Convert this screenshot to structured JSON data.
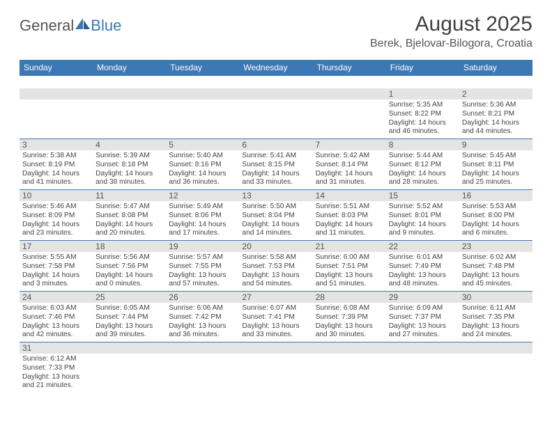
{
  "brand": {
    "word1": "General",
    "word2": "Blue"
  },
  "title": "August 2025",
  "location": "Berek, Bjelovar-Bilogora, Croatia",
  "day_headers": [
    "Sunday",
    "Monday",
    "Tuesday",
    "Wednesday",
    "Thursday",
    "Friday",
    "Saturday"
  ],
  "colors": {
    "header_bg": "#3c78b4",
    "header_text": "#ffffff",
    "daynum_bg": "#e4e4e4",
    "row_border": "#3c78b4",
    "text": "#444444",
    "title_text": "#404040"
  },
  "weeks": [
    {
      "daynums": [
        "",
        "",
        "",
        "",
        "",
        "1",
        "2"
      ],
      "cells": [
        null,
        null,
        null,
        null,
        null,
        {
          "sunrise": "Sunrise: 5:35 AM",
          "sunset": "Sunset: 8:22 PM",
          "day1": "Daylight: 14 hours",
          "day2": "and 46 minutes."
        },
        {
          "sunrise": "Sunrise: 5:36 AM",
          "sunset": "Sunset: 8:21 PM",
          "day1": "Daylight: 14 hours",
          "day2": "and 44 minutes."
        }
      ]
    },
    {
      "daynums": [
        "3",
        "4",
        "5",
        "6",
        "7",
        "8",
        "9"
      ],
      "cells": [
        {
          "sunrise": "Sunrise: 5:38 AM",
          "sunset": "Sunset: 8:19 PM",
          "day1": "Daylight: 14 hours",
          "day2": "and 41 minutes."
        },
        {
          "sunrise": "Sunrise: 5:39 AM",
          "sunset": "Sunset: 8:18 PM",
          "day1": "Daylight: 14 hours",
          "day2": "and 38 minutes."
        },
        {
          "sunrise": "Sunrise: 5:40 AM",
          "sunset": "Sunset: 8:16 PM",
          "day1": "Daylight: 14 hours",
          "day2": "and 36 minutes."
        },
        {
          "sunrise": "Sunrise: 5:41 AM",
          "sunset": "Sunset: 8:15 PM",
          "day1": "Daylight: 14 hours",
          "day2": "and 33 minutes."
        },
        {
          "sunrise": "Sunrise: 5:42 AM",
          "sunset": "Sunset: 8:14 PM",
          "day1": "Daylight: 14 hours",
          "day2": "and 31 minutes."
        },
        {
          "sunrise": "Sunrise: 5:44 AM",
          "sunset": "Sunset: 8:12 PM",
          "day1": "Daylight: 14 hours",
          "day2": "and 28 minutes."
        },
        {
          "sunrise": "Sunrise: 5:45 AM",
          "sunset": "Sunset: 8:11 PM",
          "day1": "Daylight: 14 hours",
          "day2": "and 25 minutes."
        }
      ]
    },
    {
      "daynums": [
        "10",
        "11",
        "12",
        "13",
        "14",
        "15",
        "16"
      ],
      "cells": [
        {
          "sunrise": "Sunrise: 5:46 AM",
          "sunset": "Sunset: 8:09 PM",
          "day1": "Daylight: 14 hours",
          "day2": "and 23 minutes."
        },
        {
          "sunrise": "Sunrise: 5:47 AM",
          "sunset": "Sunset: 8:08 PM",
          "day1": "Daylight: 14 hours",
          "day2": "and 20 minutes."
        },
        {
          "sunrise": "Sunrise: 5:49 AM",
          "sunset": "Sunset: 8:06 PM",
          "day1": "Daylight: 14 hours",
          "day2": "and 17 minutes."
        },
        {
          "sunrise": "Sunrise: 5:50 AM",
          "sunset": "Sunset: 8:04 PM",
          "day1": "Daylight: 14 hours",
          "day2": "and 14 minutes."
        },
        {
          "sunrise": "Sunrise: 5:51 AM",
          "sunset": "Sunset: 8:03 PM",
          "day1": "Daylight: 14 hours",
          "day2": "and 11 minutes."
        },
        {
          "sunrise": "Sunrise: 5:52 AM",
          "sunset": "Sunset: 8:01 PM",
          "day1": "Daylight: 14 hours",
          "day2": "and 9 minutes."
        },
        {
          "sunrise": "Sunrise: 5:53 AM",
          "sunset": "Sunset: 8:00 PM",
          "day1": "Daylight: 14 hours",
          "day2": "and 6 minutes."
        }
      ]
    },
    {
      "daynums": [
        "17",
        "18",
        "19",
        "20",
        "21",
        "22",
        "23"
      ],
      "cells": [
        {
          "sunrise": "Sunrise: 5:55 AM",
          "sunset": "Sunset: 7:58 PM",
          "day1": "Daylight: 14 hours",
          "day2": "and 3 minutes."
        },
        {
          "sunrise": "Sunrise: 5:56 AM",
          "sunset": "Sunset: 7:56 PM",
          "day1": "Daylight: 14 hours",
          "day2": "and 0 minutes."
        },
        {
          "sunrise": "Sunrise: 5:57 AM",
          "sunset": "Sunset: 7:55 PM",
          "day1": "Daylight: 13 hours",
          "day2": "and 57 minutes."
        },
        {
          "sunrise": "Sunrise: 5:58 AM",
          "sunset": "Sunset: 7:53 PM",
          "day1": "Daylight: 13 hours",
          "day2": "and 54 minutes."
        },
        {
          "sunrise": "Sunrise: 6:00 AM",
          "sunset": "Sunset: 7:51 PM",
          "day1": "Daylight: 13 hours",
          "day2": "and 51 minutes."
        },
        {
          "sunrise": "Sunrise: 6:01 AM",
          "sunset": "Sunset: 7:49 PM",
          "day1": "Daylight: 13 hours",
          "day2": "and 48 minutes."
        },
        {
          "sunrise": "Sunrise: 6:02 AM",
          "sunset": "Sunset: 7:48 PM",
          "day1": "Daylight: 13 hours",
          "day2": "and 45 minutes."
        }
      ]
    },
    {
      "daynums": [
        "24",
        "25",
        "26",
        "27",
        "28",
        "29",
        "30"
      ],
      "cells": [
        {
          "sunrise": "Sunrise: 6:03 AM",
          "sunset": "Sunset: 7:46 PM",
          "day1": "Daylight: 13 hours",
          "day2": "and 42 minutes."
        },
        {
          "sunrise": "Sunrise: 6:05 AM",
          "sunset": "Sunset: 7:44 PM",
          "day1": "Daylight: 13 hours",
          "day2": "and 39 minutes."
        },
        {
          "sunrise": "Sunrise: 6:06 AM",
          "sunset": "Sunset: 7:42 PM",
          "day1": "Daylight: 13 hours",
          "day2": "and 36 minutes."
        },
        {
          "sunrise": "Sunrise: 6:07 AM",
          "sunset": "Sunset: 7:41 PM",
          "day1": "Daylight: 13 hours",
          "day2": "and 33 minutes."
        },
        {
          "sunrise": "Sunrise: 6:08 AM",
          "sunset": "Sunset: 7:39 PM",
          "day1": "Daylight: 13 hours",
          "day2": "and 30 minutes."
        },
        {
          "sunrise": "Sunrise: 6:09 AM",
          "sunset": "Sunset: 7:37 PM",
          "day1": "Daylight: 13 hours",
          "day2": "and 27 minutes."
        },
        {
          "sunrise": "Sunrise: 6:11 AM",
          "sunset": "Sunset: 7:35 PM",
          "day1": "Daylight: 13 hours",
          "day2": "and 24 minutes."
        }
      ]
    },
    {
      "daynums": [
        "31",
        "",
        "",
        "",
        "",
        "",
        ""
      ],
      "cells": [
        {
          "sunrise": "Sunrise: 6:12 AM",
          "sunset": "Sunset: 7:33 PM",
          "day1": "Daylight: 13 hours",
          "day2": "and 21 minutes."
        },
        null,
        null,
        null,
        null,
        null,
        null
      ],
      "no_bottom_border": true
    }
  ]
}
